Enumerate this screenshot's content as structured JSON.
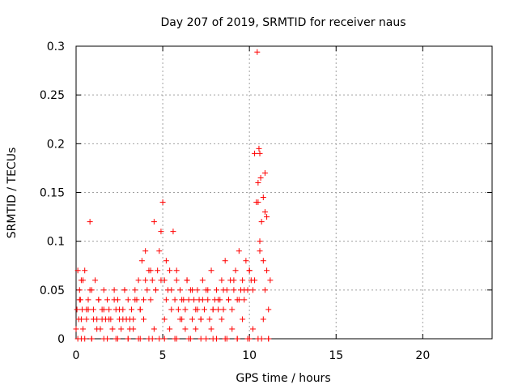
{
  "chart_data": {
    "type": "scatter",
    "title": "Day 207 of 2019, SRMTID for receiver naus",
    "xlabel": "GPS time / hours",
    "ylabel": "SRMTID / TECUs",
    "xlim": [
      0,
      24
    ],
    "ylim": [
      0,
      0.3
    ],
    "x_ticks": [
      0,
      5,
      10,
      15,
      20
    ],
    "x_tick_labels": [
      "0",
      "5",
      "10",
      "15",
      "20"
    ],
    "y_ticks": [
      0,
      0.05,
      0.1,
      0.15,
      0.2,
      0.25,
      0.3
    ],
    "y_tick_labels": [
      "0",
      "0.05",
      "0.1",
      "0.15",
      "0.2",
      "0.25",
      "0.3"
    ],
    "grid": true,
    "marker": "plus",
    "color": "#ff0000",
    "series": [
      {
        "x": [
          0.05,
          0.1,
          0.15,
          0.2,
          0.25,
          0.3,
          0.35,
          0.4,
          0.5,
          0.6,
          0.7,
          0.8,
          0.9,
          1.0,
          1.1,
          1.2,
          1.3,
          1.4,
          1.5,
          1.6,
          1.7,
          1.8,
          1.9,
          2.0,
          2.1,
          2.2,
          2.3,
          2.4,
          2.5,
          2.6,
          2.7,
          2.8,
          2.9,
          3.0,
          3.1,
          3.2,
          3.3,
          3.4,
          3.5,
          3.6,
          3.7,
          3.8,
          3.9,
          4.0,
          4.1,
          4.2,
          4.3,
          4.4,
          4.5,
          4.6,
          4.7,
          4.8,
          4.9,
          5.0,
          5.1,
          5.2,
          5.3,
          5.4,
          5.5,
          5.6,
          5.7,
          5.8,
          5.9,
          6.0,
          6.1,
          6.2,
          6.3,
          6.4,
          6.5,
          6.6,
          6.7,
          6.8,
          6.9,
          7.0,
          7.1,
          7.2,
          7.3,
          7.4,
          7.5,
          7.6,
          7.7,
          7.8,
          7.9,
          8.0,
          8.1,
          8.2,
          8.3,
          8.4,
          8.5,
          8.6,
          8.7,
          8.8,
          8.9,
          9.0,
          9.1,
          9.2,
          9.3,
          9.4,
          9.5,
          9.6,
          9.7,
          9.8,
          9.9,
          10.0,
          10.1,
          10.2,
          10.3,
          10.4,
          10.5,
          10.6,
          10.7,
          10.8,
          10.9,
          11.0,
          11.1,
          11.2
        ],
        "y": [
          0.03,
          0.07,
          0.02,
          0.05,
          0.04,
          0.06,
          0.03,
          0.01,
          0.07,
          0.02,
          0.04,
          0.12,
          0.05,
          0.03,
          0.06,
          0.02,
          0.04,
          0.01,
          0.03,
          0.05,
          0.02,
          0.04,
          0.03,
          0.02,
          0.01,
          0.05,
          0.03,
          0.04,
          0.02,
          0.01,
          0.03,
          0.05,
          0.02,
          0.04,
          0.01,
          0.03,
          0.02,
          0.05,
          0.04,
          0.06,
          0.03,
          0.08,
          0.04,
          0.09,
          0.05,
          0.07,
          0.04,
          0.06,
          0.12,
          0.05,
          0.07,
          0.09,
          0.11,
          0.14,
          0.06,
          0.04,
          0.05,
          0.07,
          0.03,
          0.11,
          0.04,
          0.06,
          0.03,
          0.05,
          0.02,
          0.04,
          0.03,
          0.06,
          0.04,
          0.05,
          0.02,
          0.04,
          0.03,
          0.05,
          0.04,
          0.02,
          0.06,
          0.03,
          0.05,
          0.04,
          0.02,
          0.07,
          0.03,
          0.04,
          0.05,
          0.03,
          0.04,
          0.06,
          0.03,
          0.08,
          0.05,
          0.04,
          0.06,
          0.03,
          0.05,
          0.07,
          0.04,
          0.09,
          0.05,
          0.06,
          0.04,
          0.08,
          0.05,
          0.07,
          0.06,
          0.05,
          0.19,
          0.14,
          0.16,
          0.1,
          0.12,
          0.08,
          0.17,
          0.07,
          0.03,
          0.06
        ]
      },
      {
        "x": [
          0.0,
          0.1,
          0.3,
          0.5,
          0.7,
          0.9,
          1.2,
          1.5,
          1.8,
          2.1,
          2.4,
          2.7,
          3.0,
          3.3,
          3.6,
          3.9,
          4.2,
          4.5,
          4.8,
          5.1,
          5.4,
          5.7,
          6.0,
          6.3,
          6.6,
          6.9,
          7.2,
          7.5,
          7.8,
          8.1,
          8.4,
          8.7,
          9.0,
          9.3,
          9.6,
          9.9,
          10.2,
          10.5,
          10.8,
          11.1
        ],
        "y": [
          0.01,
          0.0,
          0.02,
          0.0,
          0.03,
          0.0,
          0.01,
          0.02,
          0.0,
          0.01,
          0.0,
          0.02,
          0.0,
          0.01,
          0.0,
          0.02,
          0.0,
          0.01,
          0.0,
          0.02,
          0.01,
          0.0,
          0.02,
          0.01,
          0.0,
          0.01,
          0.02,
          0.0,
          0.01,
          0.0,
          0.02,
          0.0,
          0.01,
          0.0,
          0.02,
          0.0,
          0.01,
          0.0,
          0.02,
          0.0
        ]
      },
      {
        "x": [
          0.2,
          0.4,
          0.6,
          0.8,
          1.0,
          1.3,
          1.6,
          1.9,
          2.2,
          2.5,
          2.8,
          3.1,
          3.4,
          3.7,
          4.0,
          4.3,
          4.6,
          4.9,
          5.2,
          5.5,
          5.8,
          6.1,
          6.4,
          6.7,
          7.0,
          7.3,
          7.6,
          7.9,
          8.2,
          8.5,
          8.8,
          9.1,
          9.4,
          9.7,
          10.0,
          10.3,
          10.6,
          10.9
        ],
        "y": [
          0.04,
          0.06,
          0.03,
          0.05,
          0.02,
          0.04,
          0.03,
          0.02,
          0.04,
          0.03,
          0.05,
          0.02,
          0.04,
          0.03,
          0.06,
          0.07,
          0.05,
          0.06,
          0.08,
          0.05,
          0.07,
          0.04,
          0.06,
          0.05,
          0.03,
          0.04,
          0.05,
          0.03,
          0.04,
          0.05,
          0.04,
          0.06,
          0.04,
          0.05,
          0.07,
          0.06,
          0.09,
          0.05
        ]
      },
      {
        "x": [
          10.45,
          10.55,
          10.6,
          10.65,
          10.8,
          10.9,
          11.0,
          10.5
        ],
        "y": [
          0.294,
          0.195,
          0.19,
          0.165,
          0.145,
          0.13,
          0.125,
          0.14
        ]
      },
      {
        "x": [
          0.3,
          0.9,
          1.6,
          2.3,
          3.0,
          3.7,
          4.4,
          5.1,
          5.8,
          6.5,
          7.2,
          7.9,
          8.6,
          9.3,
          10.0,
          10.7,
          11.1
        ],
        "y": [
          0.0,
          0.0,
          0.0,
          0.0,
          0.0,
          0.0,
          0.0,
          0.0,
          0.0,
          0.0,
          0.0,
          0.0,
          0.0,
          0.0,
          0.0,
          0.0,
          0.0
        ]
      }
    ]
  }
}
